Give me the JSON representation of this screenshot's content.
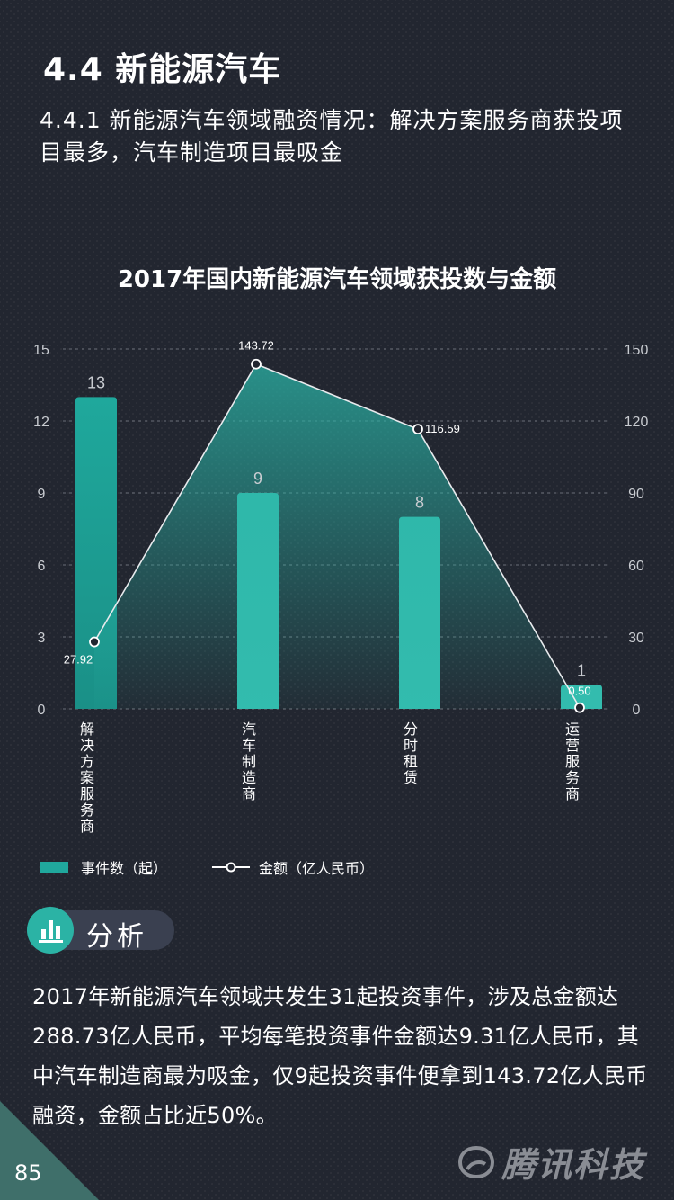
{
  "header": {
    "section_title": "4.4 新能源汽车",
    "subtitle": "4.4.1 新能源汽车领域融资情况：解决方案服务商获投项目最多，汽车制造项目最吸金"
  },
  "chart_data": {
    "type": "bar",
    "title": "2017年国内新能源汽车领域获投数与金额",
    "categories": [
      "解决方案服务商",
      "汽车制造商",
      "分时租赁",
      "运营服务商"
    ],
    "series": [
      {
        "name": "事件数（起）",
        "type": "bar",
        "axis": "left",
        "values": [
          13,
          9,
          8,
          1
        ]
      },
      {
        "name": "金额（亿人民币）",
        "type": "line",
        "axis": "right",
        "values": [
          27.92,
          143.72,
          116.59,
          0.5
        ]
      }
    ],
    "y_left": {
      "ticks": [
        "0",
        "3",
        "6",
        "9",
        "12",
        "15"
      ],
      "ylim": [
        0,
        15
      ]
    },
    "y_right": {
      "ticks": [
        "0",
        "30",
        "60",
        "90",
        "120",
        "150"
      ],
      "ylim": [
        0,
        150
      ]
    },
    "value_labels_bar": [
      "13",
      "9",
      "8",
      "1"
    ],
    "value_labels_line": [
      "27.92",
      "143.72",
      "116.59",
      "0.50"
    ],
    "grid": true,
    "legend_position": "bottom",
    "colors": {
      "bar": "#20a89d",
      "line": "#ffffff"
    }
  },
  "analysis": {
    "label": "分析",
    "icon": "bar-chart-icon",
    "text": "2017年新能源汽车领域共发生31起投资事件，涉及总金额达288.73亿人民币，平均每笔投资事件金额达9.31亿人民币，其中汽车制造商最为吸金，仅9起投资事件便拿到143.72亿人民币融资，金额占比近50%。"
  },
  "footer": {
    "page_number": "85",
    "brand": "腾讯科技",
    "brand_icon": "tencent-logo-icon"
  }
}
